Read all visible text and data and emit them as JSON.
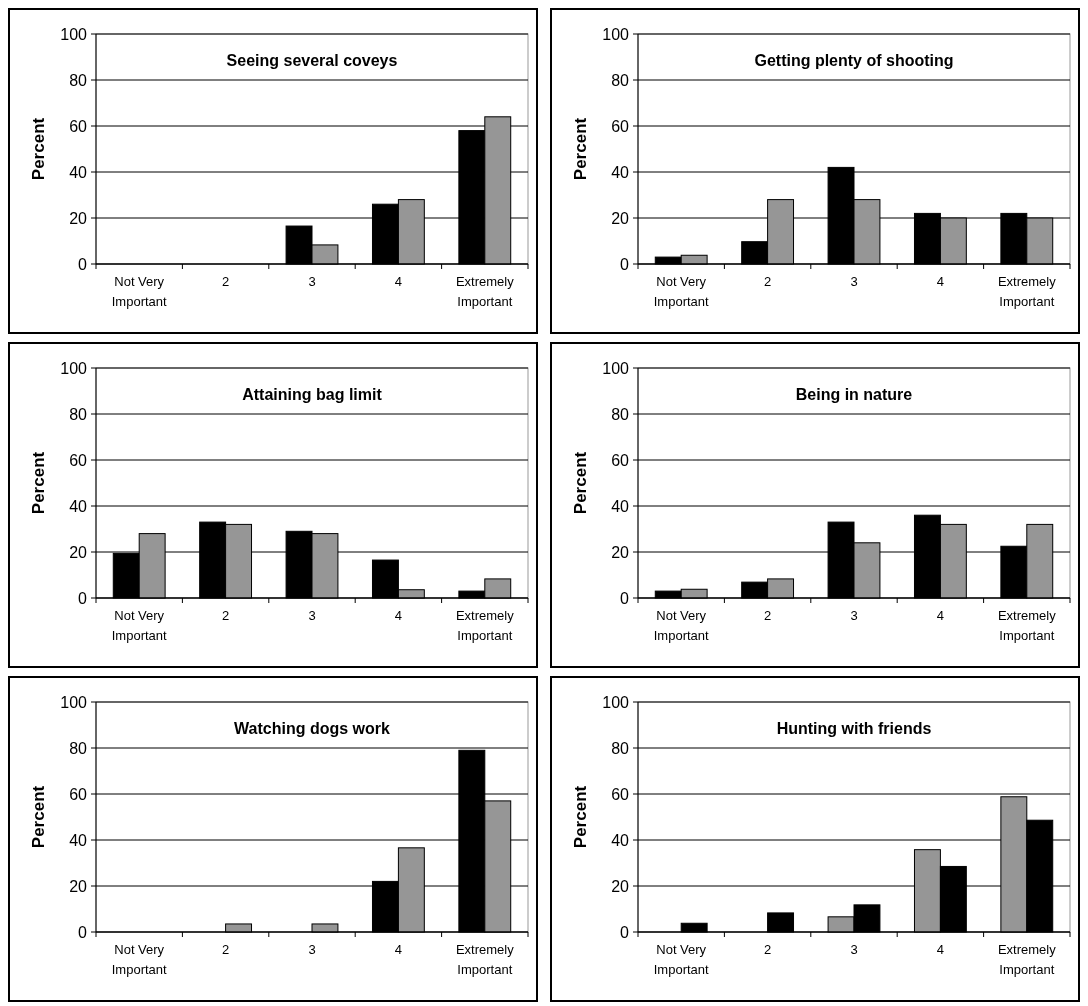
{
  "chart_data": [
    {
      "type": "bar",
      "title": "Seeing several coveys",
      "ylabel": "Percent",
      "categories": [
        "Not Very Important",
        "2",
        "3",
        "4",
        "Extremely Important"
      ],
      "ylim": [
        0,
        100
      ],
      "yticks": [
        0,
        20,
        40,
        60,
        80,
        100
      ],
      "grid": "y",
      "series": [
        {
          "color": "#000000",
          "values": [
            0,
            0,
            16.5,
            26,
            58
          ]
        },
        {
          "color": "#969696",
          "values": [
            0,
            0,
            8.3,
            28,
            64
          ]
        }
      ]
    },
    {
      "type": "bar",
      "title": "Getting plenty of shooting",
      "ylabel": "Percent",
      "categories": [
        "Not Very Important",
        "2",
        "3",
        "4",
        "Extremely Important"
      ],
      "ylim": [
        0,
        100
      ],
      "yticks": [
        0,
        20,
        40,
        60,
        80,
        100
      ],
      "grid": "y",
      "series": [
        {
          "color": "#000000",
          "values": [
            3,
            9.7,
            42,
            22,
            22
          ]
        },
        {
          "color": "#969696",
          "values": [
            3.8,
            28,
            28,
            20,
            20
          ]
        }
      ]
    },
    {
      "type": "bar",
      "title": "Attaining bag limit",
      "ylabel": "Percent",
      "categories": [
        "Not Very Important",
        "2",
        "3",
        "4",
        "Extremely Important"
      ],
      "ylim": [
        0,
        100
      ],
      "yticks": [
        0,
        20,
        40,
        60,
        80,
        100
      ],
      "grid": "y",
      "series": [
        {
          "color": "#000000",
          "values": [
            19.4,
            33,
            29,
            16.5,
            3
          ]
        },
        {
          "color": "#969696",
          "values": [
            28,
            32,
            28,
            3.6,
            8.3
          ]
        }
      ]
    },
    {
      "type": "bar",
      "title": "Being in nature",
      "ylabel": "Percent",
      "categories": [
        "Not Very Important",
        "2",
        "3",
        "4",
        "Extremely Important"
      ],
      "ylim": [
        0,
        100
      ],
      "yticks": [
        0,
        20,
        40,
        60,
        80,
        100
      ],
      "grid": "y",
      "series": [
        {
          "color": "#000000",
          "values": [
            3,
            6.9,
            33,
            36,
            22.5
          ]
        },
        {
          "color": "#969696",
          "values": [
            3.8,
            8.3,
            24,
            32,
            32
          ]
        }
      ]
    },
    {
      "type": "bar",
      "title": "Watching dogs work",
      "ylabel": "Percent",
      "categories": [
        "Not Very Important",
        "2",
        "3",
        "4",
        "Extremely Important"
      ],
      "ylim": [
        0,
        100
      ],
      "yticks": [
        0,
        20,
        40,
        60,
        80,
        100
      ],
      "grid": "y",
      "series": [
        {
          "color": "#000000",
          "values": [
            0,
            0,
            0,
            22,
            79
          ]
        },
        {
          "color": "#969696",
          "values": [
            0,
            3.5,
            3.5,
            36.6,
            57
          ]
        }
      ]
    },
    {
      "type": "bar",
      "title": "Hunting with friends",
      "ylabel": "Percent",
      "categories": [
        "Not Very Important",
        "2",
        "3",
        "4",
        "Extremely Important"
      ],
      "ylim": [
        0,
        100
      ],
      "yticks": [
        0,
        20,
        40,
        60,
        80,
        100
      ],
      "grid": "y",
      "series": [
        {
          "color": "#969696",
          "values": [
            0,
            0,
            6.6,
            35.8,
            58.8
          ]
        },
        {
          "color": "#000000",
          "values": [
            3.8,
            8.3,
            11.8,
            28.5,
            48.6
          ]
        }
      ]
    }
  ]
}
